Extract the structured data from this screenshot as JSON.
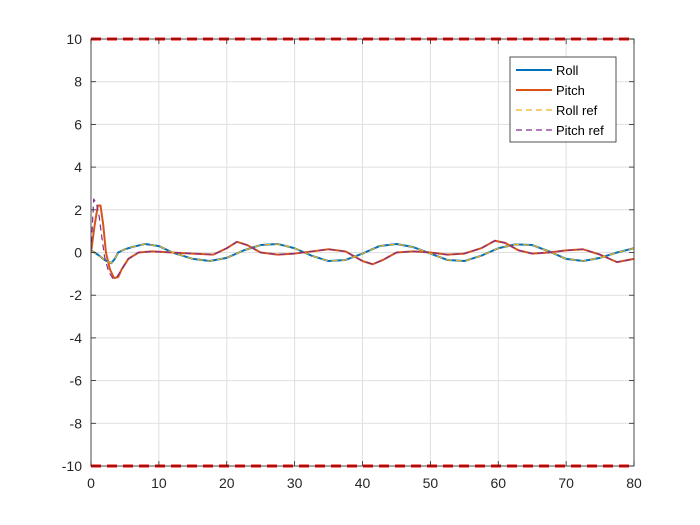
{
  "chart_data": {
    "type": "line",
    "title": "",
    "xlabel": "",
    "ylabel": "",
    "xlim": [
      0,
      80
    ],
    "ylim": [
      -10,
      10
    ],
    "xticks": [
      "0",
      "10",
      "20",
      "30",
      "40",
      "50",
      "60",
      "70",
      "80"
    ],
    "yticks": [
      "10",
      "8",
      "6",
      "4",
      "2",
      "0",
      "-2",
      "-4",
      "-6",
      "-8",
      "-10"
    ],
    "grid": true,
    "legend_position": "top-right",
    "constraints": [
      {
        "y": 10,
        "color": "#ff0000",
        "style": "dashed"
      },
      {
        "y": -10,
        "color": "#ff0000",
        "style": "dashed"
      }
    ],
    "series": [
      {
        "name": "Roll",
        "color": "#0072bd",
        "style": "solid",
        "x": [
          0,
          1,
          2,
          3,
          3.5,
          4,
          5,
          6,
          8,
          10,
          12,
          15,
          17.5,
          20,
          22.5,
          25,
          27.5,
          30,
          32.5,
          35,
          37.5,
          40,
          42.5,
          45,
          47.5,
          50,
          52.5,
          55,
          57.5,
          60,
          62.5,
          65,
          67.5,
          70,
          72.5,
          75,
          77.5,
          80
        ],
        "y": [
          0.1,
          -0.1,
          -0.35,
          -0.5,
          -0.3,
          0.0,
          0.15,
          0.25,
          0.4,
          0.3,
          0.0,
          -0.3,
          -0.4,
          -0.25,
          0.1,
          0.35,
          0.4,
          0.2,
          -0.15,
          -0.4,
          -0.35,
          -0.05,
          0.3,
          0.4,
          0.25,
          -0.05,
          -0.35,
          -0.4,
          -0.15,
          0.2,
          0.38,
          0.35,
          0.05,
          -0.3,
          -0.4,
          -0.25,
          0.0,
          0.2
        ]
      },
      {
        "name": "Pitch",
        "color": "#d95319",
        "style": "solid",
        "x": [
          0,
          0.5,
          1,
          1.4,
          1.8,
          2.2,
          2.8,
          3.4,
          4,
          4.5,
          5.5,
          7,
          9,
          12,
          15,
          18,
          20,
          21.5,
          23,
          25,
          27.5,
          30,
          32.5,
          35,
          37.5,
          40,
          41.5,
          43,
          45,
          47.5,
          50,
          52.5,
          55,
          57.5,
          59.5,
          61,
          63,
          65,
          67.5,
          70,
          72.5,
          75,
          77.5,
          80
        ],
        "y": [
          0.0,
          1.2,
          2.2,
          2.2,
          1.3,
          0.0,
          -0.8,
          -1.2,
          -1.15,
          -0.8,
          -0.3,
          0.0,
          0.05,
          0.0,
          -0.05,
          -0.1,
          0.2,
          0.5,
          0.35,
          0.0,
          -0.1,
          -0.05,
          0.05,
          0.15,
          0.05,
          -0.4,
          -0.55,
          -0.35,
          0.0,
          0.05,
          0.0,
          -0.1,
          -0.05,
          0.2,
          0.55,
          0.45,
          0.1,
          -0.05,
          0.0,
          0.1,
          0.15,
          -0.1,
          -0.45,
          -0.3
        ]
      },
      {
        "name": "Roll ref",
        "color": "#edb120",
        "style": "dashed",
        "x": [
          0,
          1,
          2,
          3,
          3.5,
          4,
          5,
          6,
          8,
          10,
          12,
          15,
          17.5,
          20,
          22.5,
          25,
          27.5,
          30,
          32.5,
          35,
          37.5,
          40,
          42.5,
          45,
          47.5,
          50,
          52.5,
          55,
          57.5,
          60,
          62.5,
          65,
          67.5,
          70,
          72.5,
          75,
          77.5,
          80
        ],
        "y": [
          0.1,
          -0.1,
          -0.35,
          -0.5,
          -0.3,
          0.0,
          0.15,
          0.25,
          0.4,
          0.3,
          0.0,
          -0.3,
          -0.4,
          -0.25,
          0.1,
          0.35,
          0.4,
          0.2,
          -0.15,
          -0.4,
          -0.35,
          -0.05,
          0.3,
          0.4,
          0.25,
          -0.05,
          -0.35,
          -0.4,
          -0.15,
          0.2,
          0.38,
          0.35,
          0.05,
          -0.3,
          -0.4,
          -0.25,
          0.0,
          0.2
        ]
      },
      {
        "name": "Pitch ref",
        "color": "#7e2f8e",
        "style": "dashed",
        "x": [
          0,
          0.4,
          0.8,
          1.2,
          1.6,
          2.0,
          2.6,
          3.2,
          3.8,
          4.5,
          5.5,
          7,
          9,
          12,
          15,
          18,
          20,
          21.5,
          23,
          25,
          27.5,
          30,
          32.5,
          35,
          37.5,
          40,
          41.5,
          43,
          45,
          47.5,
          50,
          52.5,
          55,
          57.5,
          59.5,
          61,
          63,
          65,
          67.5,
          70,
          72.5,
          75,
          77.5,
          80
        ],
        "y": [
          0.0,
          2.5,
          2.3,
          1.7,
          0.7,
          -0.2,
          -0.9,
          -1.2,
          -1.15,
          -0.8,
          -0.3,
          0.0,
          0.05,
          0.0,
          -0.05,
          -0.1,
          0.2,
          0.5,
          0.35,
          0.0,
          -0.1,
          -0.05,
          0.05,
          0.15,
          0.05,
          -0.4,
          -0.55,
          -0.35,
          0.0,
          0.05,
          0.0,
          -0.1,
          -0.05,
          0.2,
          0.55,
          0.45,
          0.1,
          -0.05,
          0.0,
          0.1,
          0.15,
          -0.1,
          -0.45,
          -0.3
        ]
      }
    ]
  }
}
